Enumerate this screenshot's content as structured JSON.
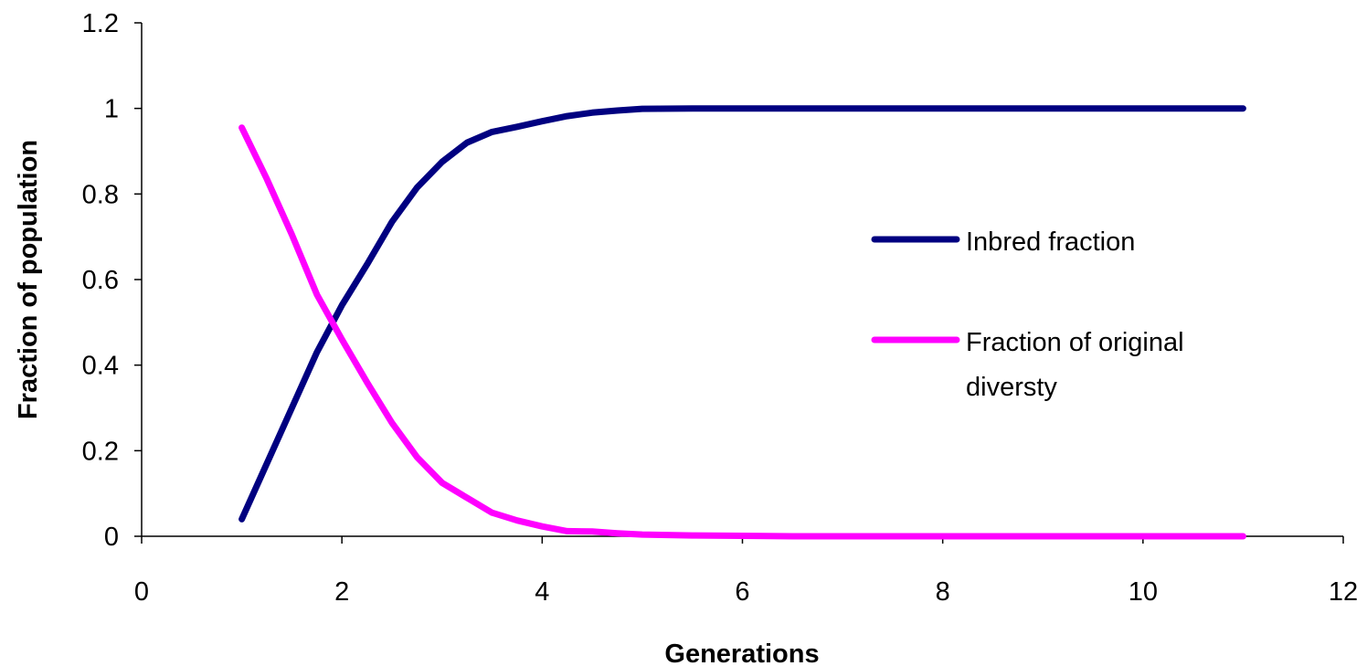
{
  "chart_data": {
    "type": "line",
    "title": "",
    "xlabel": "Generations",
    "ylabel": "Fraction of population",
    "xlim": [
      0,
      12
    ],
    "ylim": [
      0,
      1.2
    ],
    "x_ticks": [
      "0",
      "2",
      "4",
      "6",
      "8",
      "10",
      "12"
    ],
    "y_ticks": [
      "0",
      "0.2",
      "0.4",
      "0.6",
      "0.8",
      "1",
      "1.2"
    ],
    "grid": false,
    "legend_position": "right",
    "x": [
      1,
      1.25,
      1.5,
      1.75,
      2,
      2.25,
      2.5,
      2.75,
      3,
      3.25,
      3.5,
      3.75,
      4,
      4.25,
      4.5,
      4.75,
      5,
      5.5,
      6,
      6.5,
      7,
      7.5,
      8,
      8.5,
      9,
      9.5,
      10,
      10.5,
      11
    ],
    "series": [
      {
        "name": "Inbred fraction",
        "color": "#000080",
        "values": [
          0.04,
          0.17,
          0.3,
          0.43,
          0.54,
          0.635,
          0.735,
          0.815,
          0.875,
          0.92,
          0.945,
          0.957,
          0.97,
          0.982,
          0.99,
          0.995,
          0.999,
          1,
          1,
          1,
          1,
          1,
          1,
          1,
          1,
          1,
          1,
          1,
          1
        ]
      },
      {
        "name": "Fraction of original diversty",
        "color": "#FF00FF",
        "values": [
          0.955,
          0.835,
          0.705,
          0.565,
          0.46,
          0.36,
          0.265,
          0.185,
          0.125,
          0.09,
          0.055,
          0.037,
          0.023,
          0.012,
          0.011,
          0.007,
          0.004,
          0.002,
          0.001,
          0,
          0,
          0,
          0,
          0,
          0,
          0,
          0,
          0,
          0
        ]
      }
    ]
  }
}
